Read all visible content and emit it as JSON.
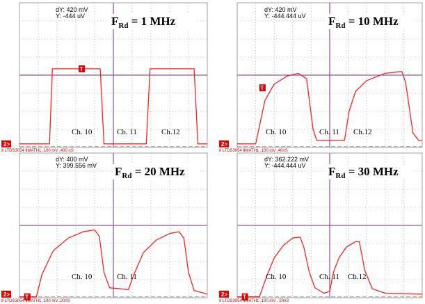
{
  "colors": {
    "trace": "#ff2020",
    "grid": "#8a8a8a",
    "axis": "#7a2d8e",
    "marker": "#e00000"
  },
  "chart_data": [
    {
      "type": "line",
      "frequency": "1 MHz",
      "readout": {
        "dy": "dY: 420 mV",
        "y": "Y: -444 uV"
      },
      "channel_labels": [
        "Ch. 10",
        "Ch. 11",
        "Ch.12"
      ],
      "status": "Ⅱ LTDS3054  ⅡMATH1 ,100 mV ,400 nS",
      "ground_marker": "2",
      "cursor_marker": "T",
      "series": [
        {
          "points": [
            [
              0,
              0.2
            ],
            [
              1.6,
              0.2
            ],
            [
              1.75,
              4.35
            ],
            [
              4.3,
              4.35
            ],
            [
              4.5,
              0.2
            ],
            [
              6.75,
              0.2
            ],
            [
              6.95,
              4.35
            ],
            [
              9.3,
              4.35
            ],
            [
              9.5,
              0.2
            ],
            [
              10,
              0.2
            ]
          ]
        }
      ]
    },
    {
      "type": "line",
      "frequency": "10 MHz",
      "readout": {
        "dy": "dY: 420 mV",
        "y": "Y: -444.444 uV"
      },
      "channel_labels": [
        "Ch. 10",
        "Ch. 11",
        "Ch.12"
      ],
      "status": "Ⅱ LTDS3054  ⅡMATH1 ,100 mV ,40nS",
      "ground_marker": "2",
      "cursor_marker": "T",
      "series": [
        {
          "points": [
            [
              0,
              0.2
            ],
            [
              1,
              0.2
            ],
            [
              1.5,
              2.6
            ],
            [
              2.0,
              3.5
            ],
            [
              2.7,
              3.95
            ],
            [
              3.3,
              4.1
            ],
            [
              3.75,
              3.8
            ],
            [
              4.1,
              1.0
            ],
            [
              4.3,
              0.4
            ],
            [
              5.8,
              0.4
            ],
            [
              6.05,
              2.0
            ],
            [
              6.4,
              3.1
            ],
            [
              7.0,
              3.7
            ],
            [
              8.0,
              4.1
            ],
            [
              8.9,
              4.2
            ],
            [
              9.1,
              3.6
            ],
            [
              9.5,
              0.8
            ],
            [
              9.8,
              0.4
            ],
            [
              10,
              0.4
            ]
          ]
        }
      ]
    },
    {
      "type": "line",
      "frequency": "20 MHz",
      "readout": {
        "dy": "dY: 400 mV",
        "y": "Y: 399.556 mV"
      },
      "channel_labels": [
        "Ch. 10",
        "Ch. 11"
      ],
      "status": "Ⅱ LTDS3054  ⅡMATH1 ,100 mV ,20nS",
      "ground_marker": "2",
      "cursor_marker": "T",
      "series": [
        {
          "points": [
            [
              0,
              0.05
            ],
            [
              0.9,
              0.05
            ],
            [
              1.2,
              1.3
            ],
            [
              1.8,
              2.6
            ],
            [
              2.6,
              3.3
            ],
            [
              3.4,
              3.65
            ],
            [
              4.0,
              3.75
            ],
            [
              4.25,
              3.4
            ],
            [
              4.5,
              1.4
            ],
            [
              4.8,
              0.55
            ],
            [
              5.8,
              0.45
            ],
            [
              6.1,
              1.3
            ],
            [
              6.6,
              2.5
            ],
            [
              7.3,
              3.2
            ],
            [
              8.0,
              3.55
            ],
            [
              8.5,
              3.65
            ],
            [
              8.75,
              3.3
            ],
            [
              9.0,
              1.4
            ],
            [
              9.3,
              0.4
            ],
            [
              10,
              0.2
            ]
          ]
        }
      ]
    },
    {
      "type": "line",
      "frequency": "30 MHz",
      "readout": {
        "dy": "dY: 362.222 mV",
        "y": "Y: -444.444 uV"
      },
      "channel_labels": [
        "Ch. 10",
        "Ch. 11",
        "Ch.12"
      ],
      "status": "Ⅱ LTDS3054  ⅡMATH1 ,100 mV , 20nS",
      "ground_marker": "2",
      "cursor_marker": "T",
      "series": [
        {
          "points": [
            [
              0,
              0.05
            ],
            [
              1.2,
              0.05
            ],
            [
              1.6,
              1.2
            ],
            [
              2.0,
              2.2
            ],
            [
              2.5,
              2.9
            ],
            [
              3.0,
              3.3
            ],
            [
              3.4,
              3.35
            ],
            [
              3.6,
              2.8
            ],
            [
              3.9,
              1.4
            ],
            [
              4.2,
              0.55
            ],
            [
              4.7,
              0.25
            ],
            [
              5.0,
              0.35
            ],
            [
              5.2,
              1.4
            ],
            [
              5.5,
              2.2
            ],
            [
              5.9,
              2.8
            ],
            [
              6.4,
              3.1
            ],
            [
              6.6,
              3.1
            ],
            [
              6.9,
              1.5
            ],
            [
              7.3,
              0.5
            ],
            [
              8.0,
              0.25
            ],
            [
              10,
              0.2
            ]
          ]
        }
      ]
    }
  ]
}
